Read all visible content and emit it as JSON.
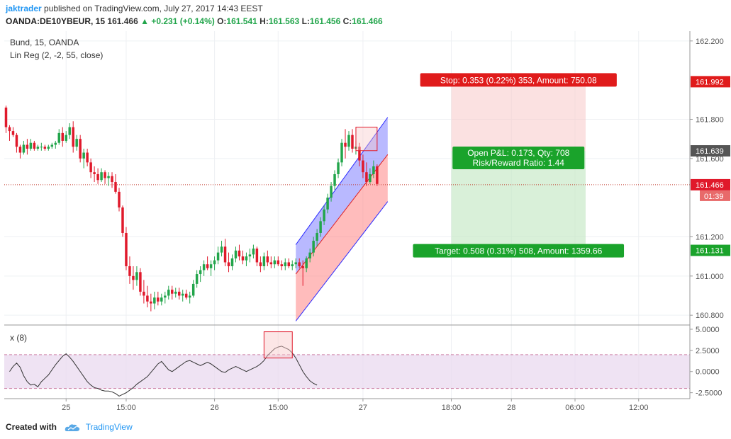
{
  "header": {
    "author": "jaktrader",
    "published_text": " published on TradingView.com, July 27, 2017 14:43 EEST",
    "symbol": "OANDA:DE10YBEUR, 15",
    "last": "161.466",
    "change": "▲ +0.231 (+0.14%)",
    "o_label": "O:",
    "o_value": "161.541",
    "h_label": "H:",
    "h_value": "161.563",
    "l_label": "L:",
    "l_value": "161.456",
    "c_label": "C:",
    "c_value": "161.466"
  },
  "footer": {
    "created_label": "Created with",
    "brand": "TradingView"
  },
  "colors": {
    "up": "#22a54b",
    "down": "#e0192b",
    "stop": "#e01b1b",
    "target": "#1aa32b",
    "channel_upper": "#8080ff",
    "channel_lower": "#ff8585",
    "channel_line": "#2b2bff",
    "oscillator_band": "#ead9ef",
    "price_line": "#c0392b",
    "brand": "#2196f3"
  },
  "chart_data": [
    {
      "type": "candlestick",
      "title": "Bund, 15, OANDA",
      "indicator": "Lin Reg (2, -2, 55, close)",
      "ylim": [
        160.75,
        162.25
      ],
      "yticks": [
        "162.200",
        "161.800",
        "161.600",
        "161.200",
        "161.000",
        "160.800"
      ],
      "ytick_values": [
        162.2,
        161.8,
        161.6,
        161.2,
        161.0,
        160.8
      ],
      "xticks": [
        "25",
        "15:00",
        "26",
        "15:00",
        "27",
        "18:00",
        "28",
        "06:00",
        "12:00"
      ],
      "xtick_bars": [
        17,
        34,
        59,
        77,
        101,
        126,
        143,
        161,
        179
      ],
      "bars_visible": 194,
      "ohlc": [
        [
          161.86,
          161.87,
          161.73,
          161.76
        ],
        [
          161.76,
          161.77,
          161.69,
          161.74
        ],
        [
          161.74,
          161.76,
          161.71,
          161.72
        ],
        [
          161.72,
          161.73,
          161.63,
          161.66
        ],
        [
          161.66,
          161.67,
          161.6,
          161.63
        ],
        [
          161.63,
          161.69,
          161.62,
          161.67
        ],
        [
          161.67,
          161.7,
          161.62,
          161.65
        ],
        [
          161.65,
          161.7,
          161.64,
          161.68
        ],
        [
          161.68,
          161.69,
          161.64,
          161.65
        ],
        [
          161.65,
          161.67,
          161.64,
          161.66
        ],
        [
          161.66,
          161.68,
          161.64,
          161.66
        ],
        [
          161.66,
          161.67,
          161.64,
          161.65
        ],
        [
          161.65,
          161.67,
          161.64,
          161.66
        ],
        [
          161.66,
          161.68,
          161.65,
          161.67
        ],
        [
          161.67,
          161.69,
          161.65,
          161.68
        ],
        [
          161.68,
          161.75,
          161.67,
          161.73
        ],
        [
          161.73,
          161.76,
          161.66,
          161.69
        ],
        [
          161.69,
          161.74,
          161.68,
          161.72
        ],
        [
          161.72,
          161.78,
          161.7,
          161.76
        ],
        [
          161.76,
          161.79,
          161.63,
          161.66
        ],
        [
          161.66,
          161.72,
          161.64,
          161.7
        ],
        [
          161.7,
          161.72,
          161.58,
          161.6
        ],
        [
          161.6,
          161.65,
          161.55,
          161.63
        ],
        [
          161.63,
          161.65,
          161.56,
          161.58
        ],
        [
          161.58,
          161.6,
          161.5,
          161.53
        ],
        [
          161.53,
          161.56,
          161.48,
          161.52
        ],
        [
          161.52,
          161.55,
          161.47,
          161.49
        ],
        [
          161.49,
          161.55,
          161.48,
          161.53
        ],
        [
          161.53,
          161.54,
          161.47,
          161.5
        ],
        [
          161.5,
          161.53,
          161.46,
          161.51
        ],
        [
          161.51,
          161.53,
          161.45,
          161.48
        ],
        [
          161.48,
          161.52,
          161.42,
          161.43
        ],
        [
          161.43,
          161.45,
          161.33,
          161.35
        ],
        [
          161.35,
          161.36,
          161.2,
          161.22
        ],
        [
          161.22,
          161.25,
          161.03,
          161.05
        ],
        [
          161.05,
          161.1,
          160.96,
          161.0
        ],
        [
          161.0,
          161.05,
          160.93,
          160.98
        ],
        [
          160.98,
          161.05,
          160.95,
          161.02
        ],
        [
          161.02,
          161.04,
          160.9,
          160.92
        ],
        [
          160.92,
          160.98,
          160.86,
          160.9
        ],
        [
          160.9,
          160.95,
          160.84,
          160.87
        ],
        [
          160.87,
          160.91,
          160.82,
          160.86
        ],
        [
          160.86,
          160.92,
          160.83,
          160.89
        ],
        [
          160.89,
          160.92,
          160.85,
          160.87
        ],
        [
          160.87,
          160.91,
          160.85,
          160.89
        ],
        [
          160.89,
          160.92,
          160.86,
          160.9
        ],
        [
          160.9,
          160.95,
          160.88,
          160.93
        ],
        [
          160.93,
          160.95,
          160.88,
          160.91
        ],
        [
          160.91,
          160.94,
          160.89,
          160.92
        ],
        [
          160.92,
          160.94,
          160.88,
          160.9
        ],
        [
          160.9,
          160.93,
          160.87,
          160.91
        ],
        [
          160.91,
          160.93,
          160.88,
          160.89
        ],
        [
          160.89,
          160.92,
          160.86,
          160.9
        ],
        [
          160.9,
          160.98,
          160.89,
          160.96
        ],
        [
          160.96,
          161.03,
          160.94,
          161.01
        ],
        [
          161.01,
          161.05,
          160.97,
          161.03
        ],
        [
          161.03,
          161.08,
          161.0,
          161.06
        ],
        [
          161.06,
          161.1,
          161.03,
          161.04
        ],
        [
          161.04,
          161.08,
          161.0,
          161.06
        ],
        [
          161.06,
          161.1,
          161.03,
          161.08
        ],
        [
          161.08,
          161.15,
          161.06,
          161.12
        ],
        [
          161.12,
          161.18,
          161.1,
          161.15
        ],
        [
          161.15,
          161.19,
          161.05,
          161.07
        ],
        [
          161.07,
          161.12,
          161.02,
          161.05
        ],
        [
          161.05,
          161.11,
          161.03,
          161.09
        ],
        [
          161.09,
          161.15,
          161.07,
          161.13
        ],
        [
          161.13,
          161.16,
          161.08,
          161.1
        ],
        [
          161.1,
          161.13,
          161.06,
          161.08
        ],
        [
          161.08,
          161.12,
          161.05,
          161.1
        ],
        [
          161.1,
          161.14,
          161.07,
          161.11
        ],
        [
          161.11,
          161.16,
          161.09,
          161.14
        ],
        [
          161.14,
          161.15,
          161.05,
          161.07
        ],
        [
          161.07,
          161.1,
          161.02,
          161.05
        ],
        [
          161.05,
          161.12,
          161.03,
          161.1
        ],
        [
          161.1,
          161.13,
          161.05,
          161.07
        ],
        [
          161.07,
          161.1,
          161.04,
          161.06
        ],
        [
          161.06,
          161.1,
          161.04,
          161.08
        ],
        [
          161.08,
          161.1,
          161.05,
          161.06
        ],
        [
          161.06,
          161.08,
          161.03,
          161.05
        ],
        [
          161.05,
          161.09,
          161.03,
          161.07
        ],
        [
          161.07,
          161.09,
          161.04,
          161.05
        ],
        [
          161.05,
          161.08,
          161.03,
          161.06
        ],
        [
          161.06,
          161.09,
          161.04,
          161.07
        ],
        [
          161.07,
          161.09,
          161.04,
          161.05
        ],
        [
          161.05,
          161.08,
          160.95,
          161.04
        ],
        [
          161.04,
          161.1,
          161.02,
          161.09
        ],
        [
          161.09,
          161.14,
          161.07,
          161.12
        ],
        [
          161.12,
          161.2,
          161.1,
          161.18
        ],
        [
          161.18,
          161.24,
          161.15,
          161.22
        ],
        [
          161.22,
          161.3,
          161.2,
          161.28
        ],
        [
          161.28,
          161.36,
          161.26,
          161.34
        ],
        [
          161.34,
          161.42,
          161.32,
          161.4
        ],
        [
          161.4,
          161.48,
          161.38,
          161.46
        ],
        [
          161.46,
          161.54,
          161.44,
          161.52
        ],
        [
          161.52,
          161.6,
          161.5,
          161.58
        ],
        [
          161.58,
          161.7,
          161.56,
          161.68
        ],
        [
          161.68,
          161.75,
          161.6,
          161.66
        ],
        [
          161.66,
          161.74,
          161.64,
          161.72
        ],
        [
          161.72,
          161.75,
          161.63,
          161.65
        ],
        [
          161.65,
          161.69,
          161.62,
          161.66
        ],
        [
          161.66,
          161.68,
          161.56,
          161.59
        ],
        [
          161.59,
          161.62,
          161.5,
          161.53
        ],
        [
          161.53,
          161.58,
          161.46,
          161.48
        ],
        [
          161.48,
          161.55,
          161.47,
          161.52
        ],
        [
          161.52,
          161.59,
          161.5,
          161.56
        ],
        [
          161.56,
          161.57,
          161.46,
          161.47
        ]
      ],
      "linreg_channel": {
        "start_bar": 82,
        "end_bar": 108,
        "upper": [
          161.16,
          161.81
        ],
        "middle": [
          161.01,
          161.62
        ],
        "lower": [
          160.77,
          161.38
        ]
      },
      "current_price_line": 161.466,
      "price_labels": [
        {
          "value": 161.992,
          "text": "161.992",
          "color": "stop"
        },
        {
          "value": 161.639,
          "text": "161.639",
          "color": "neutral"
        },
        {
          "value": 161.466,
          "text": "161.466",
          "color": "down"
        },
        {
          "value": 161.131,
          "text": "161.131",
          "color": "target"
        }
      ],
      "countdown": "01:39",
      "position": {
        "entry": 161.639,
        "stop": 161.992,
        "target": 161.131,
        "start_bar": 126,
        "end_bar": 164,
        "stop_label": "Stop: 0.353 (0.22%) 353, Amount: 750.08",
        "pnl_label": "Open P&L: 0.173, Qty: 708",
        "rr_label": "Risk/Reward Ratio: 1.44",
        "target_label": "Target: 0.508 (0.31%) 508, Amount: 1359.66"
      }
    },
    {
      "type": "line",
      "title": "x (8)",
      "ylim": [
        -3.2,
        5.5
      ],
      "yticks": [
        "5.0000",
        "2.5000",
        "0.0000",
        "-2.5000"
      ],
      "ytick_values": [
        5.0,
        2.5,
        0.0,
        -2.5
      ],
      "band": [
        -2.0,
        2.0
      ],
      "values": [
        0.0,
        0.6,
        1.0,
        0.5,
        -0.5,
        -1.2,
        -1.6,
        -1.5,
        -1.8,
        -1.2,
        -0.8,
        -0.4,
        0.2,
        0.8,
        1.3,
        1.8,
        2.1,
        1.7,
        1.2,
        0.6,
        0.0,
        -0.6,
        -1.2,
        -1.6,
        -1.9,
        -2.0,
        -2.2,
        -2.3,
        -2.3,
        -2.4,
        -2.6,
        -2.9,
        -2.7,
        -2.5,
        -2.2,
        -1.9,
        -1.5,
        -1.2,
        -0.9,
        -0.6,
        -0.1,
        0.4,
        0.9,
        1.2,
        0.7,
        0.2,
        0.0,
        0.3,
        0.6,
        0.9,
        1.2,
        1.3,
        1.1,
        0.9,
        0.7,
        0.9,
        1.1,
        0.9,
        0.6,
        0.3,
        0.0,
        -0.1,
        0.2,
        0.4,
        0.6,
        0.4,
        0.2,
        0.0,
        0.2,
        0.4,
        0.6,
        0.9,
        1.3,
        1.9,
        2.3,
        2.7,
        2.9,
        3.0,
        2.8,
        2.6,
        2.2,
        1.6,
        0.8,
        0.0,
        -0.6,
        -1.1,
        -1.4,
        -1.6
      ]
    }
  ]
}
